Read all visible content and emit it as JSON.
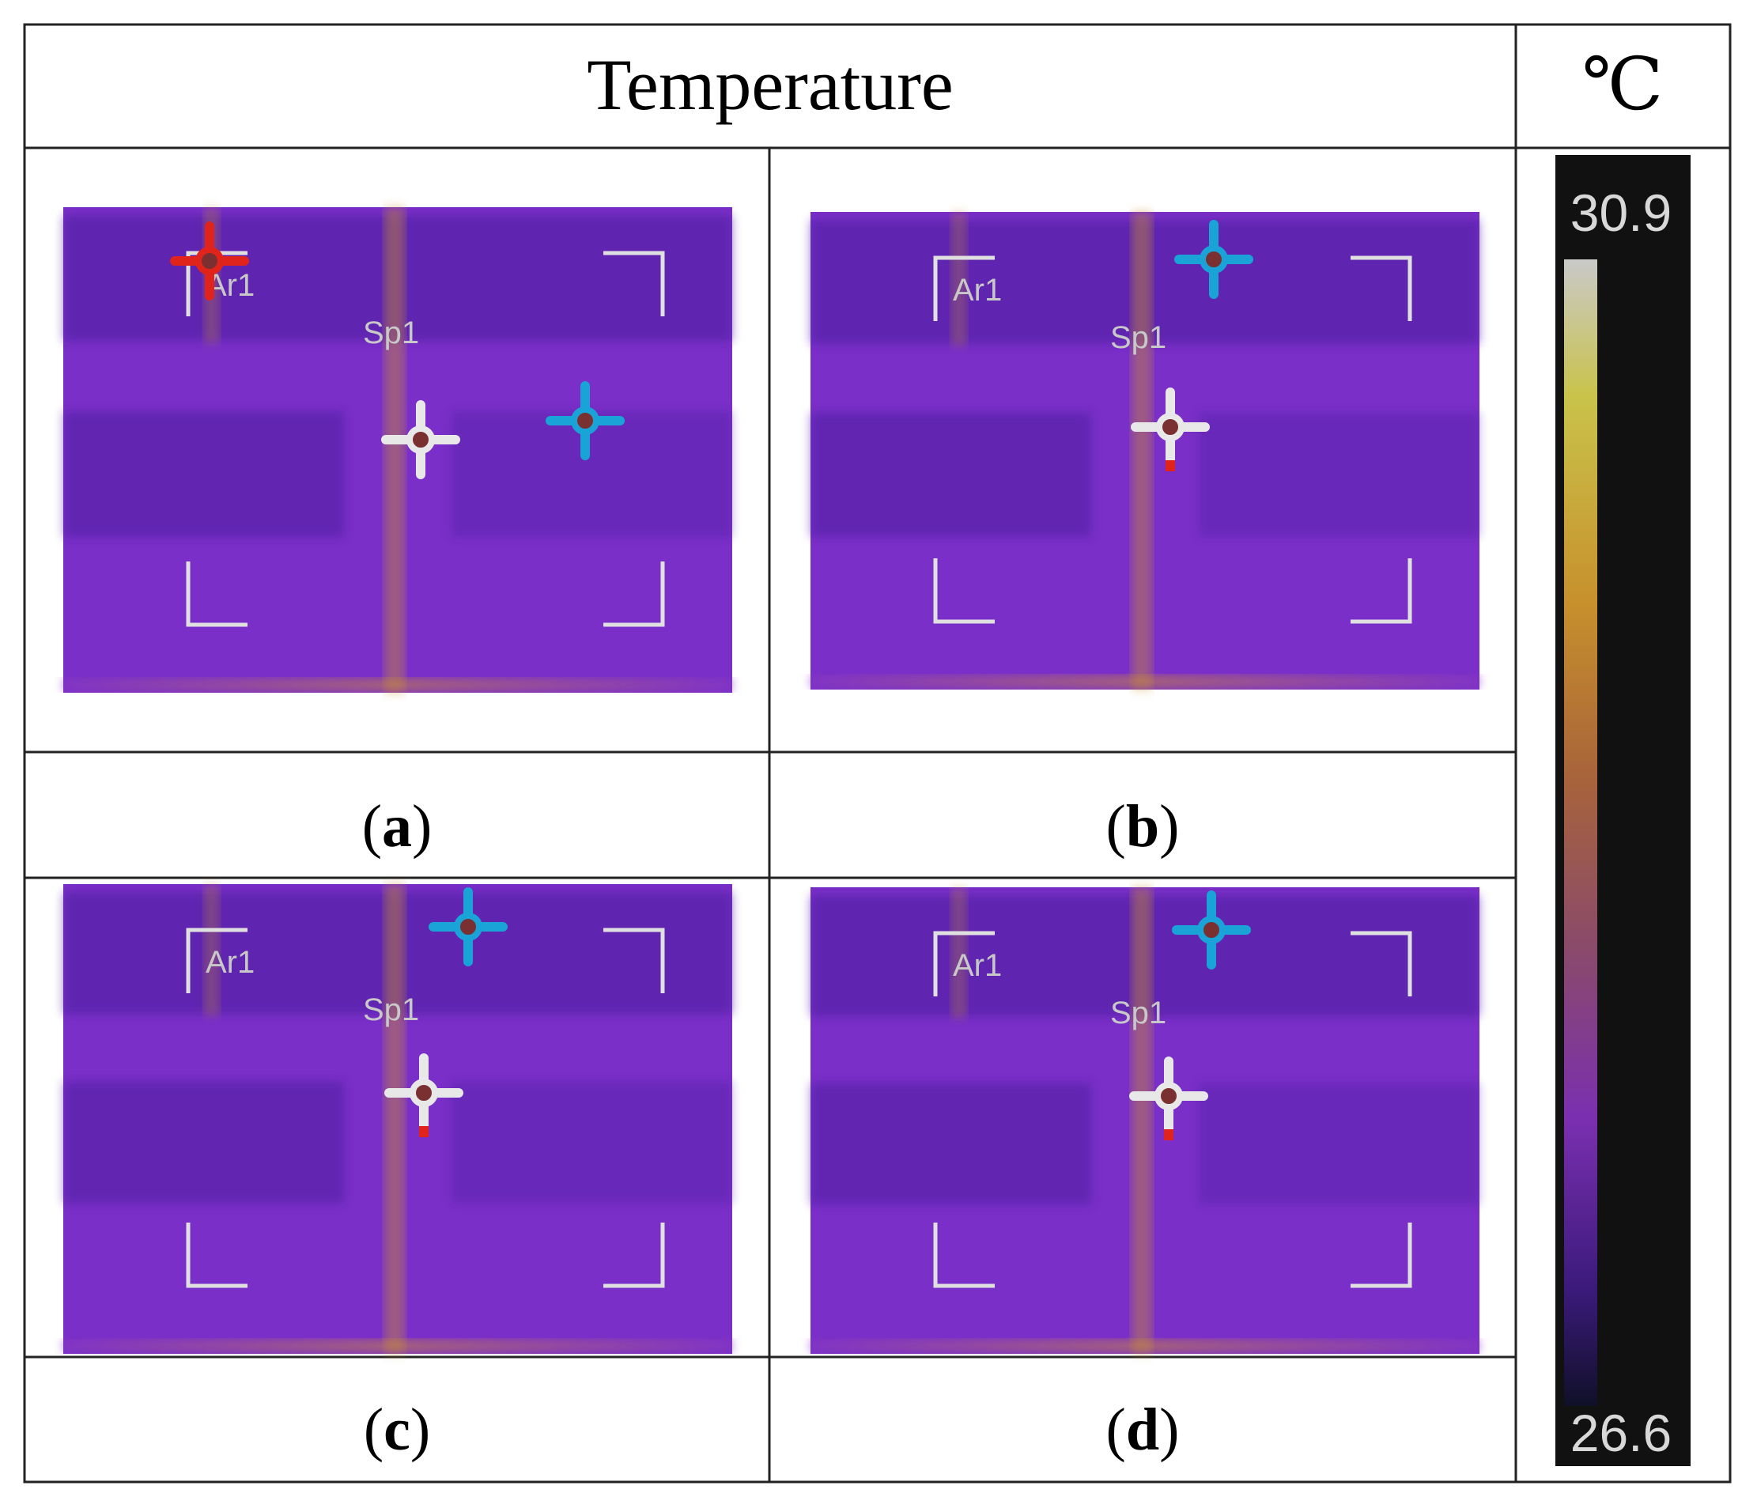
{
  "header": {
    "title": "Temperature",
    "unit": "℃"
  },
  "panels": [
    {
      "letter": "a",
      "area_label": "Ar1",
      "spot_label": "Sp1",
      "has_red_marker": true
    },
    {
      "letter": "b",
      "area_label": "Ar1",
      "spot_label": "Sp1",
      "has_red_marker": false
    },
    {
      "letter": "c",
      "area_label": "Ar1",
      "spot_label": "Sp1",
      "has_red_marker": false
    },
    {
      "letter": "d",
      "area_label": "Ar1",
      "spot_label": "Sp1",
      "has_red_marker": false
    }
  ],
  "scale": {
    "max": "30.9",
    "min": "26.6"
  },
  "colors": {
    "thermal_base": "#7a2fc8",
    "thermal_dark": "#4a1d9e",
    "thermal_hot": "#c9902e",
    "spot_marker_white": "#e8e8e8",
    "spot_marker_blue": "#1aa3d6",
    "spot_marker_red": "#e0241c",
    "scale_background": "#111111"
  },
  "icons": {
    "spot_marker": "crosshair-icon",
    "area_corner": "bracket-corner-icon"
  }
}
